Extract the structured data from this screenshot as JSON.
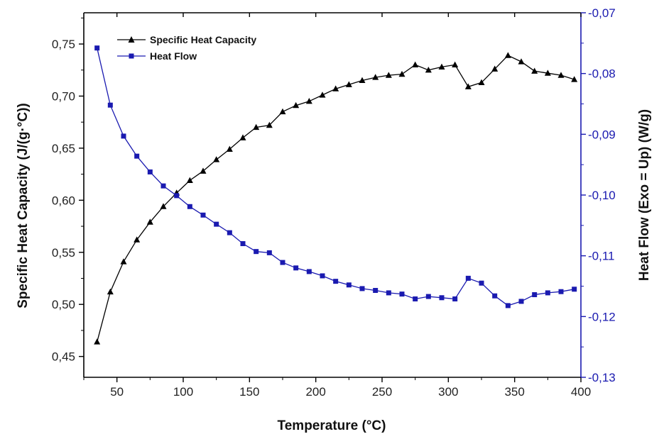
{
  "chart_data": {
    "type": "line",
    "title": "",
    "xlabel": "Temperature (°C)",
    "ylabel_left": "Specific Heat Capacity (J/(g·°C))",
    "ylabel_right": "Heat Flow (Exo = Up) (W/g)",
    "xlim": [
      25,
      400
    ],
    "ylim_left": [
      0.43,
      0.78
    ],
    "ylim_right": [
      -0.13,
      -0.07
    ],
    "xticks": [
      50,
      100,
      150,
      200,
      250,
      300,
      350,
      400
    ],
    "xtick_labels": [
      "50",
      "100",
      "150",
      "200",
      "250",
      "300",
      "350",
      "400"
    ],
    "yticks_left": [
      0.45,
      0.5,
      0.55,
      0.6,
      0.65,
      0.7,
      0.75
    ],
    "ytick_labels_left": [
      "0,45",
      "0,50",
      "0,55",
      "0,60",
      "0,65",
      "0,70",
      "0,75"
    ],
    "yticks_right": [
      -0.13,
      -0.12,
      -0.11,
      -0.1,
      -0.09,
      -0.08,
      -0.07
    ],
    "ytick_labels_right": [
      "-0,13",
      "-0,12",
      "-0,11",
      "-0,10",
      "-0,09",
      "-0,08",
      "-0,07"
    ],
    "grid": false,
    "legend_position": "top-left",
    "x": [
      35,
      45,
      55,
      65,
      75,
      85,
      95,
      105,
      115,
      125,
      135,
      145,
      155,
      165,
      175,
      185,
      195,
      205,
      215,
      225,
      235,
      245,
      255,
      265,
      275,
      285,
      295,
      305,
      315,
      325,
      335,
      345,
      355,
      365,
      375,
      385,
      395
    ],
    "series": [
      {
        "name": "Specific Heat Capacity",
        "axis": "left",
        "marker": "triangle",
        "color": "#000000",
        "values": [
          0.464,
          0.512,
          0.541,
          0.562,
          0.579,
          0.594,
          0.607,
          0.619,
          0.628,
          0.639,
          0.649,
          0.66,
          0.67,
          0.672,
          0.685,
          0.691,
          0.695,
          0.701,
          0.707,
          0.711,
          0.715,
          0.718,
          0.72,
          0.721,
          0.73,
          0.725,
          0.728,
          0.73,
          0.709,
          0.713,
          0.726,
          0.739,
          0.733,
          0.724,
          0.722,
          0.72,
          0.716
        ]
      },
      {
        "name": "Heat Flow",
        "axis": "right",
        "marker": "square",
        "color": "#1a1ab0",
        "values": [
          -0.0758,
          -0.0852,
          -0.0903,
          -0.0936,
          -0.0962,
          -0.0985,
          -0.1001,
          -0.1019,
          -0.1033,
          -0.1048,
          -0.1062,
          -0.108,
          -0.1093,
          -0.1095,
          -0.1111,
          -0.112,
          -0.1126,
          -0.1133,
          -0.1142,
          -0.1148,
          -0.1154,
          -0.1157,
          -0.1161,
          -0.1163,
          -0.1171,
          -0.1167,
          -0.1169,
          -0.1171,
          -0.1137,
          -0.1145,
          -0.1166,
          -0.1182,
          -0.1175,
          -0.1164,
          -0.1161,
          -0.1159,
          -0.1155
        ]
      }
    ]
  },
  "colors": {
    "left_axis": "#000000",
    "right_axis": "#1a1ab0",
    "background": "#ffffff"
  }
}
